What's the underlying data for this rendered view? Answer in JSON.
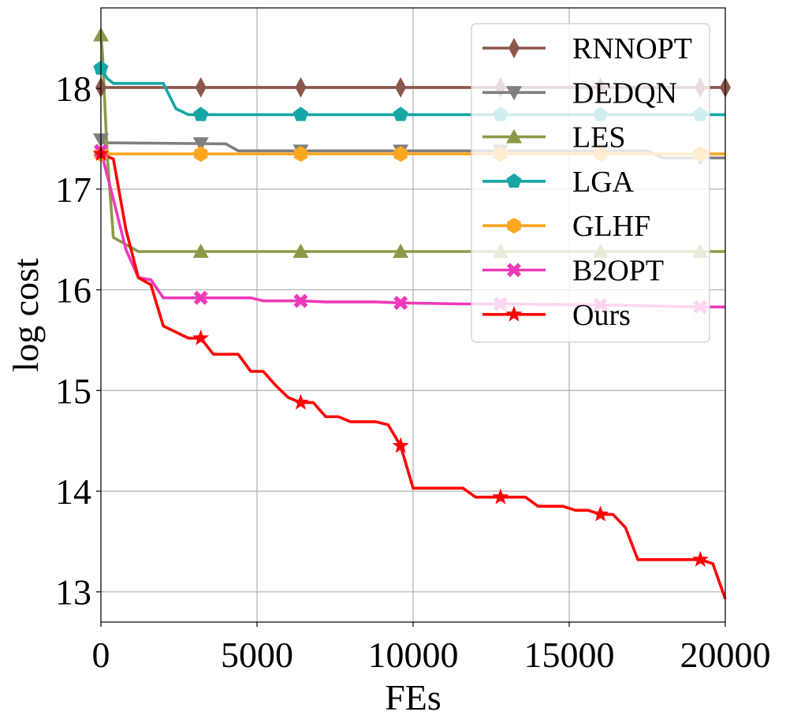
{
  "chart_data": {
    "type": "line",
    "title": "",
    "xlabel": "FEs",
    "ylabel": "log cost",
    "xlim": [
      0,
      20000
    ],
    "ylim": [
      12.7,
      18.8
    ],
    "xticks": [
      0,
      5000,
      10000,
      15000,
      20000
    ],
    "yticks": [
      13,
      14,
      15,
      16,
      17,
      18
    ],
    "xtick_labels": [
      "0",
      "5000",
      "10000",
      "15000",
      "20000"
    ],
    "ytick_labels": [
      "13",
      "14",
      "15",
      "16",
      "17",
      "18"
    ],
    "grid": true,
    "legend_position": "top-right",
    "series": [
      {
        "name": "RNNOPT",
        "color": "#8c564b",
        "marker": "diamond",
        "x": [
          0,
          20000
        ],
        "y": [
          18.01,
          18.01
        ],
        "marker_x": [
          0,
          3200,
          6400,
          9600,
          12800,
          16000,
          19200,
          20000
        ]
      },
      {
        "name": "DEDQN",
        "color": "#7f7f7f",
        "marker": "triangle-down",
        "x": [
          0,
          100,
          4000,
          4400,
          17500,
          18000,
          20000
        ],
        "y": [
          17.49,
          17.46,
          17.45,
          17.38,
          17.38,
          17.31,
          17.31
        ],
        "marker_x": [
          0,
          3200,
          6400,
          9600,
          12800,
          16000,
          19200
        ]
      },
      {
        "name": "LES",
        "color": "#8c9a48",
        "marker": "triangle-up",
        "x": [
          0,
          50,
          200,
          400,
          800,
          1200,
          20000
        ],
        "y": [
          18.53,
          18.35,
          17.35,
          16.52,
          16.45,
          16.38,
          16.38
        ],
        "marker_x": [
          0,
          3200,
          6400,
          9600,
          12800,
          16000,
          19200
        ]
      },
      {
        "name": "LGA",
        "color": "#17a5a5",
        "marker": "pentagon",
        "x": [
          0,
          200,
          400,
          2000,
          2400,
          2800,
          3200,
          20000
        ],
        "y": [
          18.2,
          18.1,
          18.05,
          18.05,
          17.8,
          17.74,
          17.74,
          17.74
        ],
        "marker_x": [
          0,
          3200,
          6400,
          9600,
          12800,
          16000,
          19200
        ]
      },
      {
        "name": "GLHF",
        "color": "#ffa620",
        "marker": "hexagon",
        "x": [
          0,
          20000
        ],
        "y": [
          17.35,
          17.35
        ],
        "marker_x": [
          0,
          3200,
          6400,
          9600,
          12800,
          16000,
          19200
        ]
      },
      {
        "name": "B2OPT",
        "color": "#ee3ab9",
        "marker": "x-filled",
        "x": [
          0,
          400,
          800,
          1200,
          1600,
          2000,
          4800,
          5200,
          6400,
          7200,
          8800,
          9600,
          11600,
          12800,
          16000,
          19200,
          20000
        ],
        "y": [
          17.38,
          16.9,
          16.4,
          16.12,
          16.1,
          15.92,
          15.92,
          15.89,
          15.89,
          15.88,
          15.88,
          15.87,
          15.86,
          15.86,
          15.85,
          15.83,
          15.83
        ],
        "marker_x": [
          0,
          3200,
          6400,
          9600,
          12800,
          16000,
          19200
        ]
      },
      {
        "name": "Ours",
        "color": "#ff0000",
        "marker": "star",
        "x": [
          0,
          400,
          800,
          1200,
          1600,
          2000,
          2800,
          3200,
          3600,
          4400,
          4800,
          5200,
          5600,
          6000,
          6400,
          6800,
          7200,
          7600,
          8000,
          8800,
          9200,
          9600,
          10000,
          10400,
          11600,
          12000,
          12400,
          12800,
          13600,
          14000,
          14800,
          15200,
          15600,
          16000,
          16400,
          16800,
          17200,
          19200,
          19600,
          20000
        ],
        "y": [
          17.35,
          17.3,
          16.6,
          16.12,
          16.05,
          15.64,
          15.52,
          15.52,
          15.36,
          15.36,
          15.19,
          15.19,
          15.05,
          14.93,
          14.88,
          14.88,
          14.74,
          14.74,
          14.69,
          14.69,
          14.66,
          14.45,
          14.03,
          14.03,
          14.03,
          13.94,
          13.94,
          13.94,
          13.94,
          13.85,
          13.85,
          13.81,
          13.81,
          13.77,
          13.77,
          13.64,
          13.32,
          13.32,
          13.28,
          12.93
        ],
        "marker_x": [
          0,
          3200,
          6400,
          9600,
          12800,
          16000,
          19200
        ]
      }
    ]
  }
}
